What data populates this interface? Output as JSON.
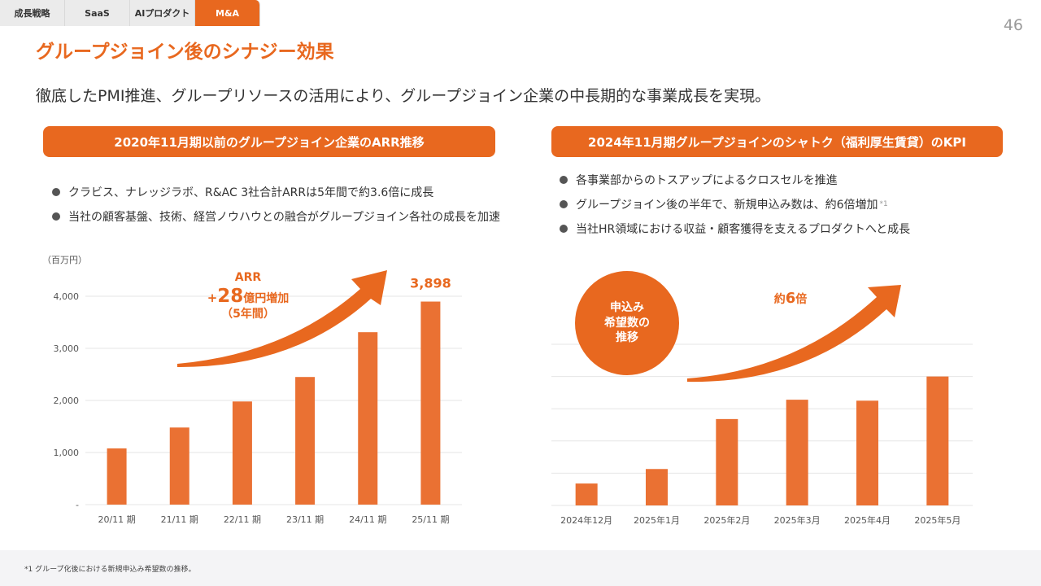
{
  "tabs": [
    {
      "label": "成長戦略"
    },
    {
      "label": "SaaS"
    },
    {
      "label": "AIプロダクト"
    },
    {
      "label": "M&A"
    }
  ],
  "page_number": "46",
  "title": "グループジョイン後のシナジー効果",
  "subtitle": "徹底したPMI推進、グループリソースの活用により、グループジョイン企業の中長期的な事業成長を実現。",
  "left": {
    "header": "2020年11月期以前のグループジョイン企業のARR推移",
    "bullets": [
      "クラビス、ナレッジラボ、R&AC 3社合計ARRは5年間で約3.6倍に成長",
      "当社の顧客基盤、技術、経営ノウハウとの融合がグループジョイン各社の成長を加速"
    ],
    "annotation": {
      "line1": "ARR",
      "plus": "+",
      "num": "28",
      "unit": "億円増加",
      "line3": "（5年間）"
    }
  },
  "right": {
    "header": "2024年11月期グループジョインのシャトク（福利厚生賃貸）のKPI",
    "bullets": [
      {
        "text": "各事業部からのトスアップによるクロスセルを推進",
        "sup": ""
      },
      {
        "text": "グループジョイン後の半年で、新規申込み数は、約6倍増加",
        "sup": "*1"
      },
      {
        "text": "当社HR領域における収益・顧客獲得を支えるプロダクトへと成長",
        "sup": ""
      }
    ],
    "circle": {
      "line1": "申込み",
      "line2": "希望数の",
      "line3": "推移"
    },
    "annotation": {
      "prefix": "約",
      "num": "6",
      "suffix": "倍"
    }
  },
  "chart_data": [
    {
      "type": "bar",
      "title": "2020年11月期以前のグループジョイン企業のARR推移",
      "unit_label": "（百万円）",
      "categories": [
        "20/11 期",
        "21/11 期",
        "22/11 期",
        "23/11 期",
        "24/11 期",
        "25/11 期"
      ],
      "values": [
        1080,
        1480,
        1980,
        2450,
        3310,
        3898
      ],
      "ylim": [
        0,
        4000
      ],
      "yticks": [
        {
          "value": 0,
          "label": "-"
        },
        {
          "value": 1000,
          "label": "1,000"
        },
        {
          "value": 2000,
          "label": "2,000"
        },
        {
          "value": 3000,
          "label": "3,000"
        },
        {
          "value": 4000,
          "label": "4,000"
        }
      ],
      "last_value_label": "3,898",
      "grid": true,
      "color": "#ea7133"
    },
    {
      "type": "bar",
      "title": "申込み希望数の推移",
      "categories": [
        "2024年12月",
        "2025年1月",
        "2025年2月",
        "2025年3月",
        "2025年4月",
        "2025年5月"
      ],
      "values": [
        0.68,
        1.13,
        2.68,
        3.28,
        3.25,
        4.0
      ],
      "ylim": [
        0,
        5
      ],
      "yticks": [
        {
          "value": 0
        },
        {
          "value": 1
        },
        {
          "value": 2
        },
        {
          "value": 3
        },
        {
          "value": 4
        },
        {
          "value": 5
        }
      ],
      "grid": true,
      "color": "#ea7133"
    }
  ],
  "footnote": "*1 グループ化後における新規申込み希望数の推移。",
  "colors": {
    "accent": "#e8681f",
    "bar": "#ea7133"
  }
}
